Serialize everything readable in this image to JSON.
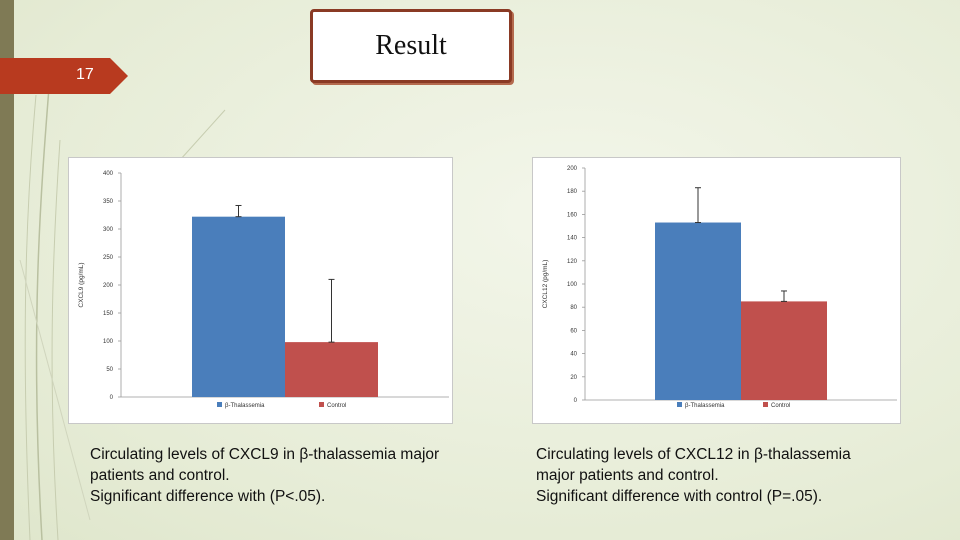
{
  "slide": {
    "number": "17",
    "title": "Result"
  },
  "colors": {
    "beta_thal": "#4a7ebb",
    "control": "#c0504d",
    "title_border": "#8a3a24",
    "badge": "#b83a1f"
  },
  "chart_data": [
    {
      "type": "bar",
      "ylabel": "CXCL9 (pg/mL)",
      "categories": [
        "β-Thalassemia",
        "Control"
      ],
      "values": [
        322,
        98
      ],
      "error_upper": [
        342,
        210
      ],
      "error_lower": [
        322,
        98
      ],
      "ylim": [
        0,
        400
      ],
      "yticks": [
        "0",
        "50",
        "100",
        "150",
        "200",
        "250",
        "300",
        "350",
        "400"
      ],
      "legend": [
        "β-Thalassemia",
        "Control"
      ],
      "legend_position": "bottom"
    },
    {
      "type": "bar",
      "ylabel": "CXCL12 (pg/mL)",
      "categories": [
        "β-Thalassemia",
        "Control"
      ],
      "values": [
        153,
        85
      ],
      "error_upper": [
        183,
        94
      ],
      "error_lower": [
        153,
        85
      ],
      "ylim": [
        0,
        200
      ],
      "yticks": [
        "0",
        "20",
        "40",
        "60",
        "80",
        "100",
        "120",
        "140",
        "160",
        "180",
        "200"
      ],
      "legend": [
        "β-Thalassemia",
        "Control"
      ],
      "legend_position": "bottom"
    }
  ],
  "captions": [
    {
      "line1": "Circulating levels of CXCL9 in β-thalassemia major",
      "line2": "patients and control.",
      "line3": "Significant difference with (P<.05)."
    },
    {
      "line1": "Circulating levels of CXCL12 in β-thalassemia",
      "line2": "major patients and control.",
      "line3": "Significant difference with control (P=.05)."
    }
  ]
}
